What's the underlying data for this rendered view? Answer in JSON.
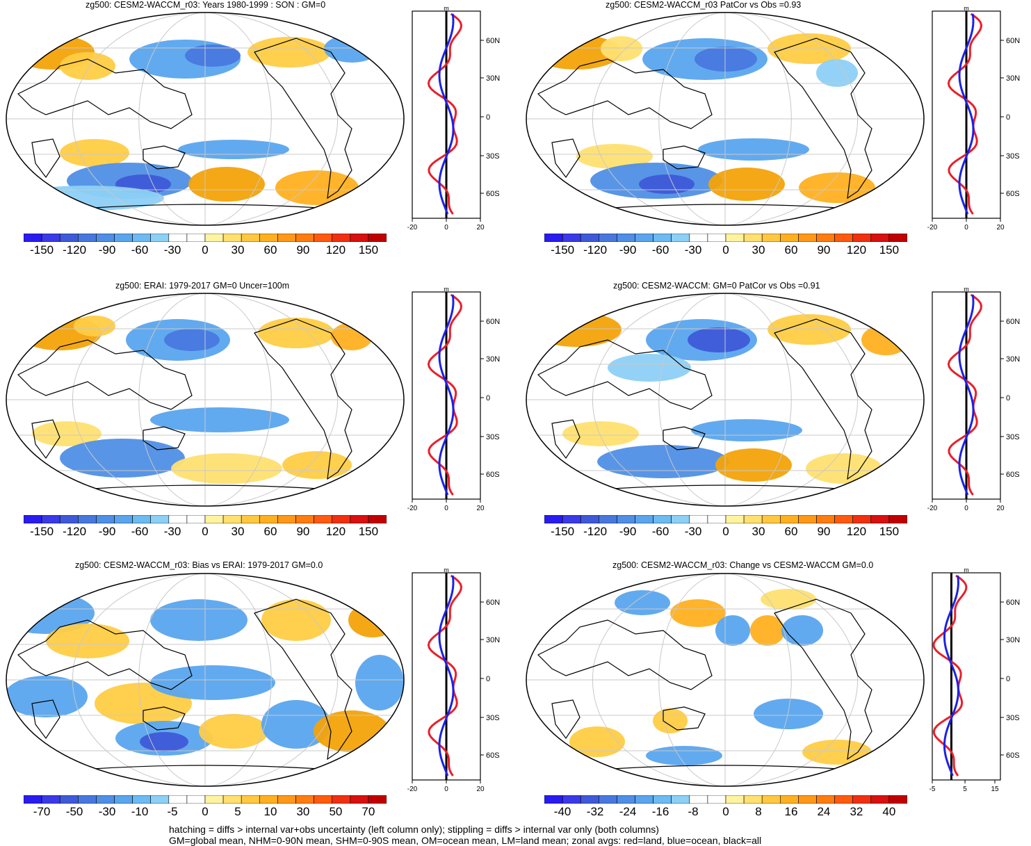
{
  "panels": [
    {
      "title": "zg500: CESM2-WACCM_r03: Years 1980-1999 : SON : GM=0",
      "cbar": "A",
      "zonal": "A"
    },
    {
      "title": "zg500: CESM2-WACCM_r03 PatCor vs Obs =0.93",
      "cbar": "A",
      "zonal": "A"
    },
    {
      "title": "zg500: ERAI: 1979-2017 GM=0 Uncer=100m",
      "cbar": "A",
      "zonal": "A"
    },
    {
      "title": "zg500: CESM2-WACCM: GM=0 PatCor vs Obs =0.91",
      "cbar": "A",
      "zonal": "A"
    },
    {
      "title": "zg500: CESM2-WACCM_r03: Bias vs ERAI: 1979-2017  GM=0.0",
      "cbar": "B",
      "zonal": "A"
    },
    {
      "title": "zg500: CESM2-WACCM_r03: Change vs CESM2-WACCM GM=0.0",
      "cbar": "C",
      "zonal": "C"
    }
  ],
  "colorbars": {
    "A": {
      "labels": [
        "-150",
        "-120",
        "-90",
        "-60",
        "-30",
        "0",
        "30",
        "60",
        "90",
        "120",
        "150"
      ]
    },
    "B": {
      "labels": [
        "-70",
        "-50",
        "-30",
        "-10",
        "-5",
        "0",
        "5",
        "10",
        "30",
        "50",
        "70"
      ]
    },
    "C": {
      "labels": [
        "-40",
        "-32",
        "-24",
        "-16",
        "-8",
        "0",
        "8",
        "16",
        "24",
        "32",
        "40"
      ]
    },
    "colors": [
      "#2a1cf0",
      "#3a3ae8",
      "#3e5ad8",
      "#4878de",
      "#4f8fe6",
      "#5aa5ee",
      "#6cbbf2",
      "#8dd0f6",
      "#ffffff",
      "#ffffff",
      "#fff3a0",
      "#ffe070",
      "#ffc840",
      "#ffb020",
      "#ff9818",
      "#ff7c10",
      "#ff5a10",
      "#f03010",
      "#d81010",
      "#c00000"
    ]
  },
  "zonal_axes": {
    "A": {
      "unit": "m",
      "x_ticks": [
        "-20",
        "0",
        "20"
      ]
    },
    "C": {
      "unit": "m",
      "x_ticks": [
        "-5",
        "5",
        "15"
      ]
    },
    "lat_ticks": [
      "60N",
      "30N",
      "0",
      "30S",
      "60S"
    ]
  },
  "colors": {
    "land": "#e8202a",
    "ocean": "#1a22e8",
    "all": "#000000"
  },
  "caption": {
    "line1": "hatching = diffs > internal var+obs uncertainty (left column only); stippling = diffs > internal var only (both columns)",
    "line2": "GM=global mean, NHM=0-90N mean, SHM=0-90S mean, OM=ocean mean, LM=land mean; zonal avgs: red=land, blue=ocean, black=all"
  }
}
